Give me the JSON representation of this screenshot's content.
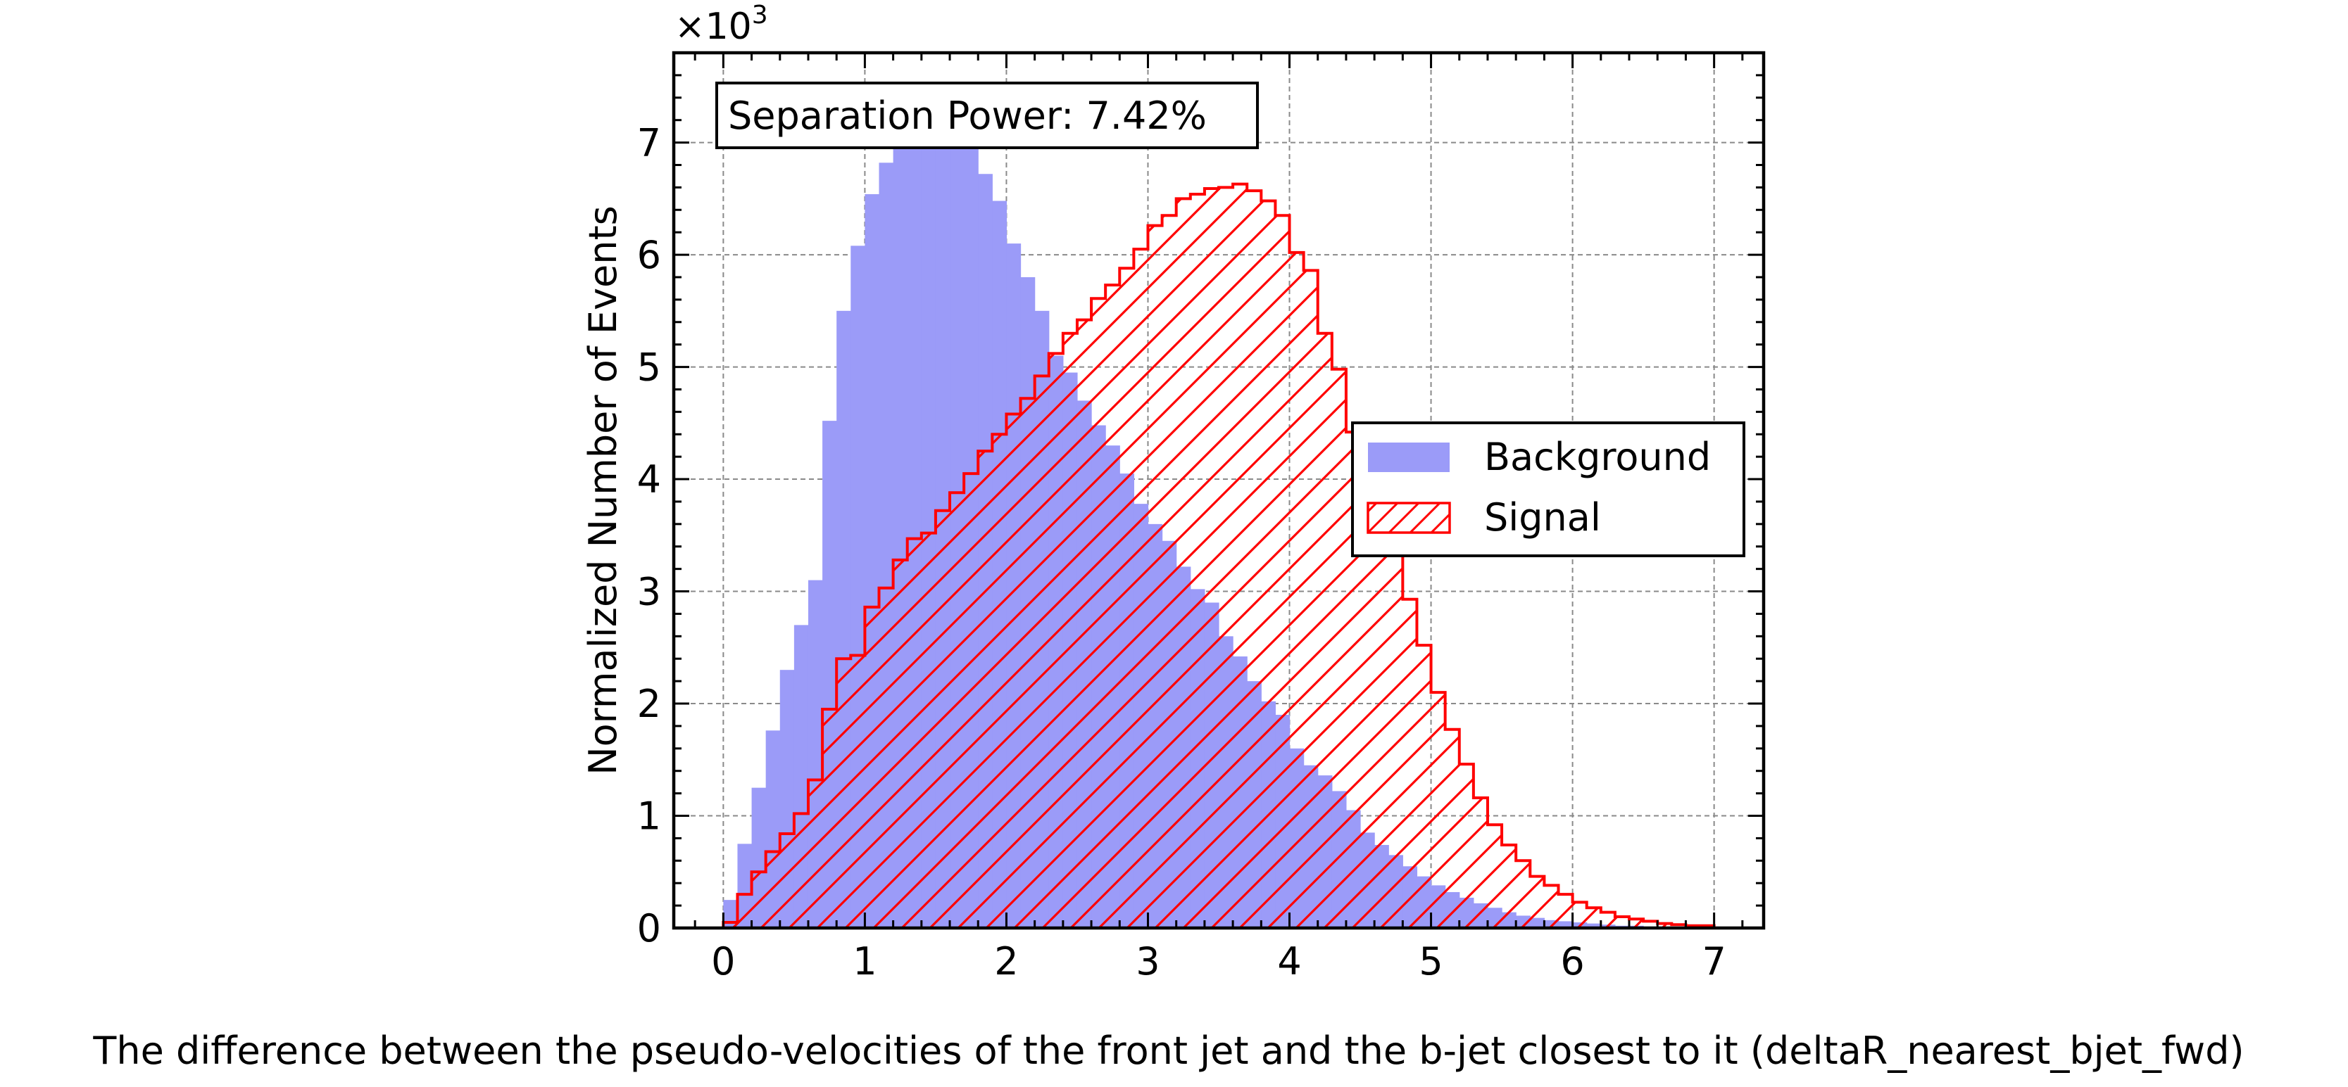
{
  "chart_data": {
    "type": "histogram",
    "xlabel": "The difference between the pseudo-velocities of the front jet and the b-jet closest to it (deltaR_nearest_bjet_fwd)",
    "ylabel": "Normalized Number of Events",
    "y_multiplier_label": "×10",
    "y_multiplier_exponent": "3",
    "xlim": [
      -0.35,
      7.35
    ],
    "ylim": [
      0,
      7.8
    ],
    "y_units_note": "values in thousands (×10^3)",
    "x_ticks": [
      0,
      1,
      2,
      3,
      4,
      5,
      6,
      7
    ],
    "y_ticks": [
      0,
      1,
      2,
      3,
      4,
      5,
      6,
      7
    ],
    "x_tick_labels": [
      "0",
      "1",
      "2",
      "3",
      "4",
      "5",
      "6",
      "7"
    ],
    "y_tick_labels": [
      "0",
      "1",
      "2",
      "3",
      "4",
      "5",
      "6",
      "7"
    ],
    "grid": true,
    "annotation": "Separation Power: 7.42%",
    "legend_position": "center-right",
    "bins": {
      "start": 0.0,
      "width": 0.1
    },
    "series": [
      {
        "name": "Background",
        "style": "filled",
        "color": "#9b9bf8",
        "values": [
          0.25,
          0.75,
          1.25,
          1.76,
          2.3,
          2.7,
          3.1,
          4.52,
          5.5,
          6.08,
          6.54,
          6.82,
          7.2,
          7.35,
          7.45,
          7.35,
          7.3,
          7.15,
          6.72,
          6.48,
          6.1,
          5.8,
          5.5,
          5.1,
          4.95,
          4.7,
          4.48,
          4.3,
          4.05,
          3.78,
          3.6,
          3.45,
          3.22,
          3.02,
          2.9,
          2.6,
          2.42,
          2.2,
          2.02,
          1.9,
          1.6,
          1.45,
          1.36,
          1.22,
          1.05,
          0.85,
          0.74,
          0.65,
          0.55,
          0.46,
          0.38,
          0.32,
          0.27,
          0.22,
          0.18,
          0.14,
          0.11,
          0.09,
          0.07,
          0.06,
          0.05,
          0.04,
          0.03,
          0.02,
          0.02,
          0.01,
          0.01,
          0.0,
          0.0,
          0.0
        ]
      },
      {
        "name": "Signal",
        "style": "hatched-step",
        "color": "#ff0000",
        "values": [
          0.05,
          0.3,
          0.5,
          0.68,
          0.84,
          1.02,
          1.32,
          1.95,
          2.4,
          2.43,
          2.86,
          3.03,
          3.28,
          3.47,
          3.52,
          3.72,
          3.88,
          4.05,
          4.25,
          4.4,
          4.58,
          4.72,
          4.92,
          5.12,
          5.3,
          5.42,
          5.61,
          5.73,
          5.88,
          6.05,
          6.26,
          6.35,
          6.5,
          6.54,
          6.59,
          6.6,
          6.63,
          6.57,
          6.48,
          6.35,
          6.02,
          5.86,
          5.3,
          4.98,
          4.42,
          4.07,
          3.6,
          3.36,
          2.93,
          2.52,
          2.1,
          1.77,
          1.46,
          1.16,
          0.92,
          0.74,
          0.6,
          0.46,
          0.38,
          0.3,
          0.23,
          0.18,
          0.14,
          0.1,
          0.08,
          0.06,
          0.04,
          0.03,
          0.02,
          0.02
        ]
      }
    ]
  }
}
